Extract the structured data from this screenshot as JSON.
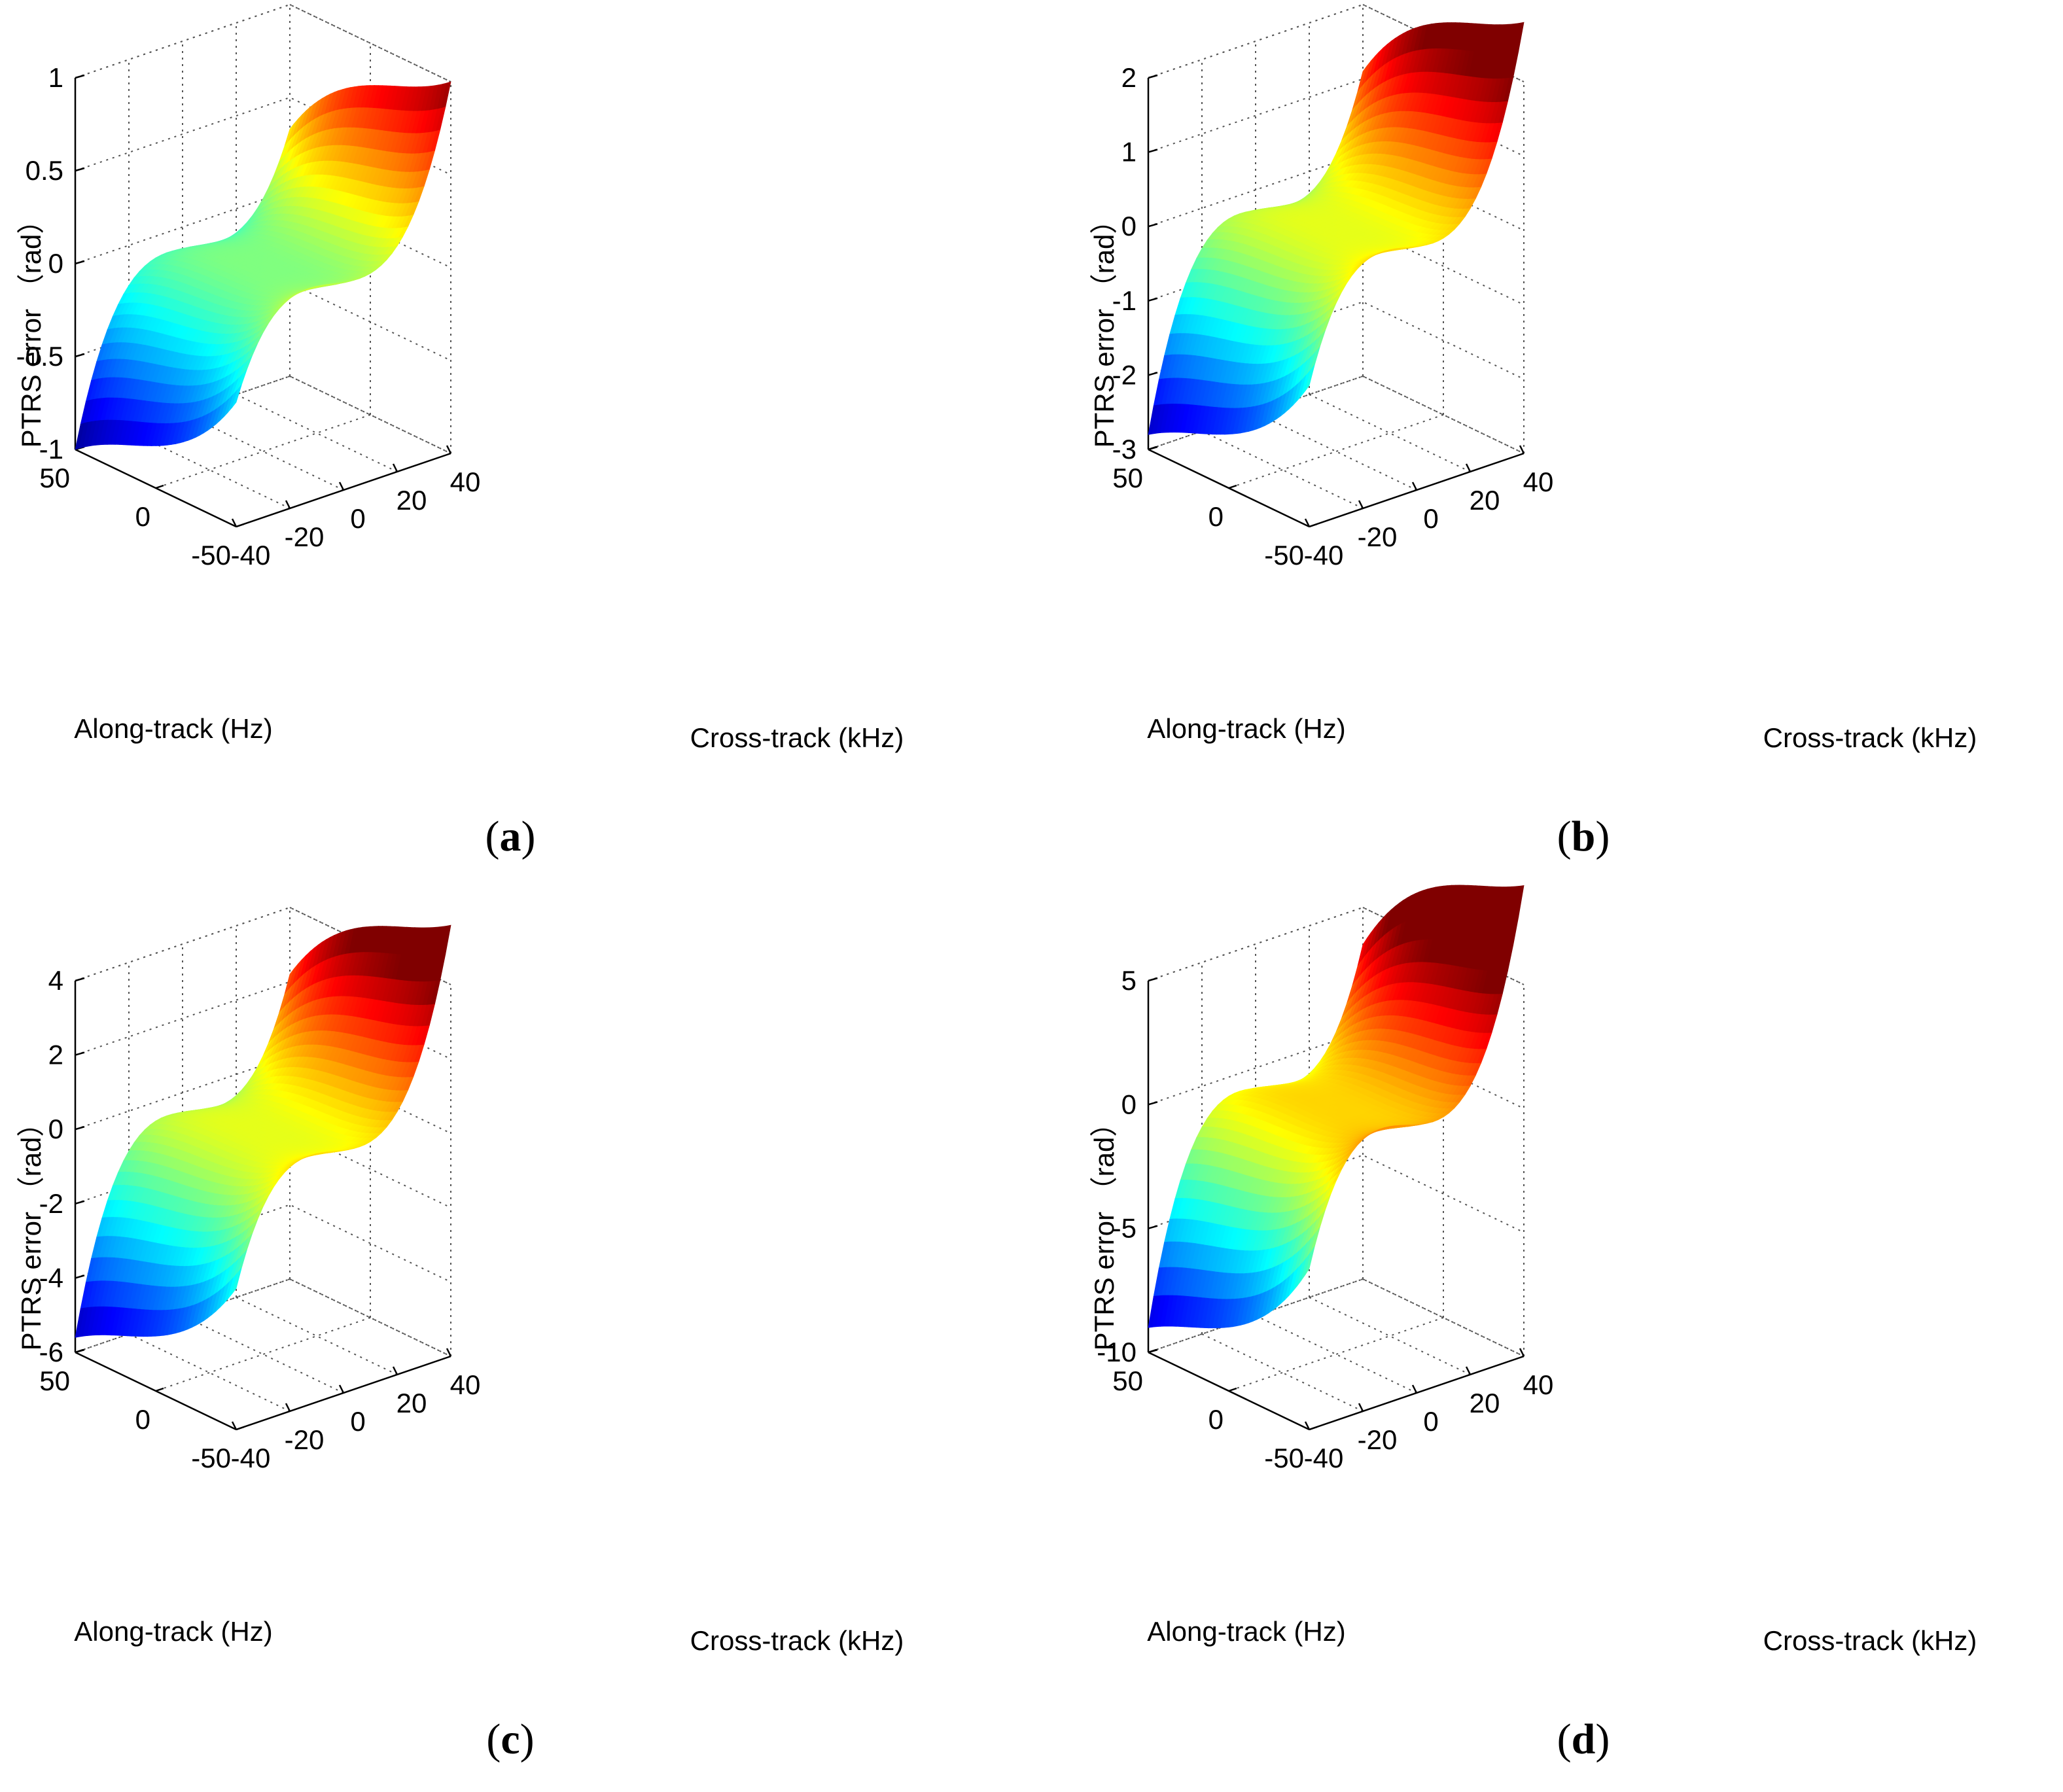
{
  "figure": {
    "panels": [
      {
        "caption_letter": "a",
        "open_paren": "(",
        "close_paren": ")"
      },
      {
        "caption_letter": "b",
        "open_paren": "(",
        "close_paren": ")"
      },
      {
        "caption_letter": "c",
        "open_paren": "(",
        "close_paren": ")"
      },
      {
        "caption_letter": "d",
        "open_paren": "(",
        "close_paren": ")"
      }
    ]
  },
  "chart_data": [
    {
      "type": "surface",
      "panel": "a",
      "zlabel": "PTRS error （rad）",
      "xlabel": "Along-track (Hz)",
      "ylabel": "Cross-track (kHz)",
      "xlim": [
        -50,
        50
      ],
      "ylim": [
        -40,
        40
      ],
      "zlim": [
        -1,
        1
      ],
      "xticks": [
        50,
        0,
        -50
      ],
      "xtick_labels": [
        "50",
        "0",
        "-50"
      ],
      "yticks": [
        -40,
        -20,
        0,
        20,
        40
      ],
      "ytick_labels": [
        "-40",
        "-20",
        "0",
        "20",
        "40"
      ],
      "zticks": [
        1,
        0.5,
        0,
        -0.5,
        -1
      ],
      "ztick_labels": [
        "1",
        "0.5",
        "0",
        "-0.5",
        "-1"
      ],
      "corner_values": {
        "x50_y-40": -0.78,
        "x50_y40": 0.33,
        "x-50_y-40": -0.98,
        "x-50_y40": 1.0
      },
      "colormap": "jet",
      "grid": true
    },
    {
      "type": "surface",
      "panel": "b",
      "zlabel": "PTRS error （rad）",
      "xlabel": "Along-track (Hz)",
      "ylabel": "Cross-track (kHz)",
      "xlim": [
        -50,
        50
      ],
      "ylim": [
        -40,
        40
      ],
      "zlim": [
        -3,
        2
      ],
      "xticks": [
        50,
        0,
        -50
      ],
      "xtick_labels": [
        "50",
        "0",
        "-50"
      ],
      "yticks": [
        -40,
        -20,
        0,
        20,
        40
      ],
      "ytick_labels": [
        "-40",
        "-20",
        "0",
        "20",
        "40"
      ],
      "zticks": [
        2,
        1,
        0,
        -1,
        -2,
        -3
      ],
      "ztick_labels": [
        "2",
        "1",
        "0",
        "-1",
        "-2",
        "-3"
      ],
      "corner_values": {
        "x50_y-40": -2.3,
        "x50_y40": 1.1,
        "x-50_y-40": -2.9,
        "x-50_y40": 2.8
      },
      "colormap": "jet",
      "grid": true
    },
    {
      "type": "surface",
      "panel": "c",
      "zlabel": "PTRS error （rad）",
      "xlabel": "Along-track (Hz)",
      "ylabel": "Cross-track (kHz)",
      "xlim": [
        -50,
        50
      ],
      "ylim": [
        -40,
        40
      ],
      "zlim": [
        -6,
        4
      ],
      "xticks": [
        50,
        0,
        -50
      ],
      "xtick_labels": [
        "50",
        "0",
        "-50"
      ],
      "yticks": [
        -40,
        -20,
        0,
        20,
        40
      ],
      "ytick_labels": [
        "-40",
        "-20",
        "0",
        "20",
        "40"
      ],
      "zticks": [
        4,
        2,
        0,
        -2,
        -4,
        -6
      ],
      "ztick_labels": [
        "4",
        "2",
        "0",
        "-2",
        "-4",
        "-6"
      ],
      "corner_values": {
        "x50_y-40": -4.5,
        "x50_y40": 2.2,
        "x-50_y-40": -5.8,
        "x-50_y40": 5.6
      },
      "colormap": "jet",
      "grid": true
    },
    {
      "type": "surface",
      "panel": "d",
      "zlabel": "PTRS error （rad）",
      "xlabel": "Along-track (Hz)",
      "ylabel": "Cross-track (kHz)",
      "xlim": [
        -50,
        50
      ],
      "ylim": [
        -40,
        40
      ],
      "zlim": [
        -10,
        5
      ],
      "xticks": [
        50,
        0,
        -50
      ],
      "xtick_labels": [
        "50",
        "0",
        "-50"
      ],
      "yticks": [
        -40,
        -20,
        0,
        20,
        40
      ],
      "ytick_labels": [
        "-40",
        "-20",
        "0",
        "20",
        "40"
      ],
      "zticks": [
        5,
        0,
        -5,
        -10
      ],
      "ztick_labels": [
        "5",
        "0",
        "-5",
        "-10"
      ],
      "corner_values": {
        "x50_y-40": -7.5,
        "x50_y40": 3.5,
        "x-50_y-40": -9.7,
        "x-50_y40": 9.0
      },
      "colormap": "jet",
      "grid": true
    }
  ]
}
